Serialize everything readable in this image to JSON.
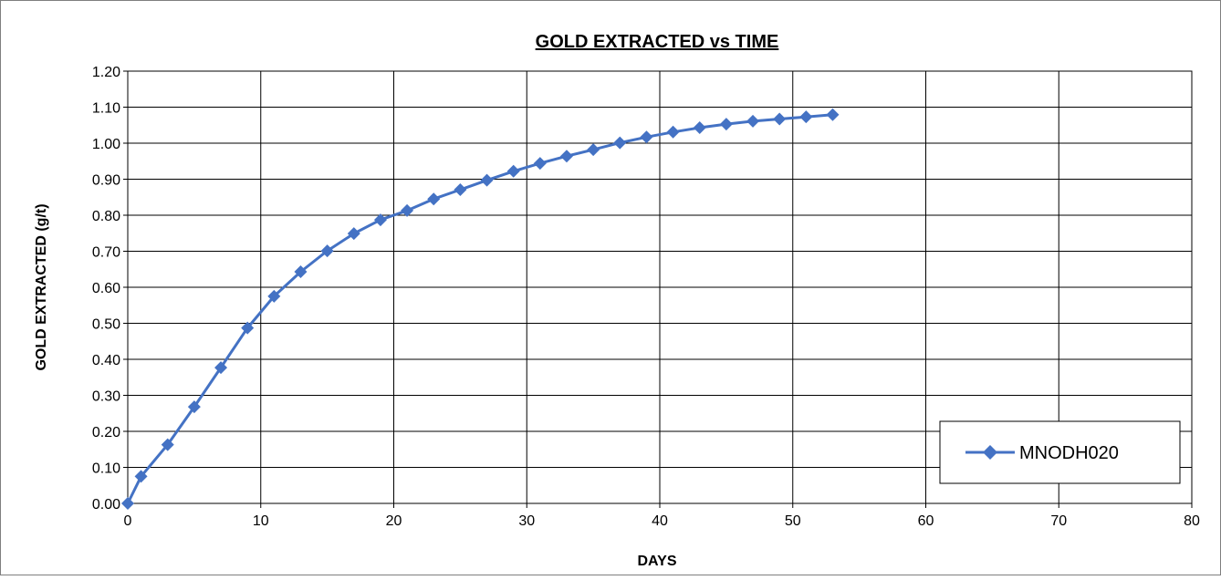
{
  "chart_data": {
    "type": "line",
    "title": "GOLD EXTRACTED vs TIME",
    "xlabel": "DAYS",
    "ylabel": "GOLD EXTRACTED (g/t)",
    "xlim": [
      0,
      80
    ],
    "ylim": [
      0,
      1.2
    ],
    "x_ticks": [
      "0",
      "10",
      "20",
      "30",
      "40",
      "50",
      "60",
      "70",
      "80"
    ],
    "y_ticks": [
      "0.00",
      "0.10",
      "0.20",
      "0.30",
      "0.40",
      "0.50",
      "0.60",
      "0.70",
      "0.80",
      "0.90",
      "1.00",
      "1.10",
      "1.20"
    ],
    "grid": true,
    "legend_position": "bottom-right",
    "series": [
      {
        "name": "MNODH020",
        "color": "#4472C4",
        "marker": "diamond",
        "x": [
          0,
          1,
          3,
          5,
          7,
          9,
          11,
          13,
          15,
          17,
          19,
          21,
          23,
          25,
          27,
          29,
          31,
          33,
          35,
          37,
          39,
          41,
          43,
          45,
          47,
          49,
          51,
          53
        ],
        "y": [
          0.0,
          0.075,
          0.163,
          0.268,
          0.377,
          0.487,
          0.575,
          0.643,
          0.701,
          0.749,
          0.787,
          0.813,
          0.845,
          0.871,
          0.897,
          0.922,
          0.944,
          0.964,
          0.982,
          1.001,
          1.017,
          1.031,
          1.043,
          1.053,
          1.061,
          1.067,
          1.073,
          1.079
        ]
      }
    ]
  }
}
